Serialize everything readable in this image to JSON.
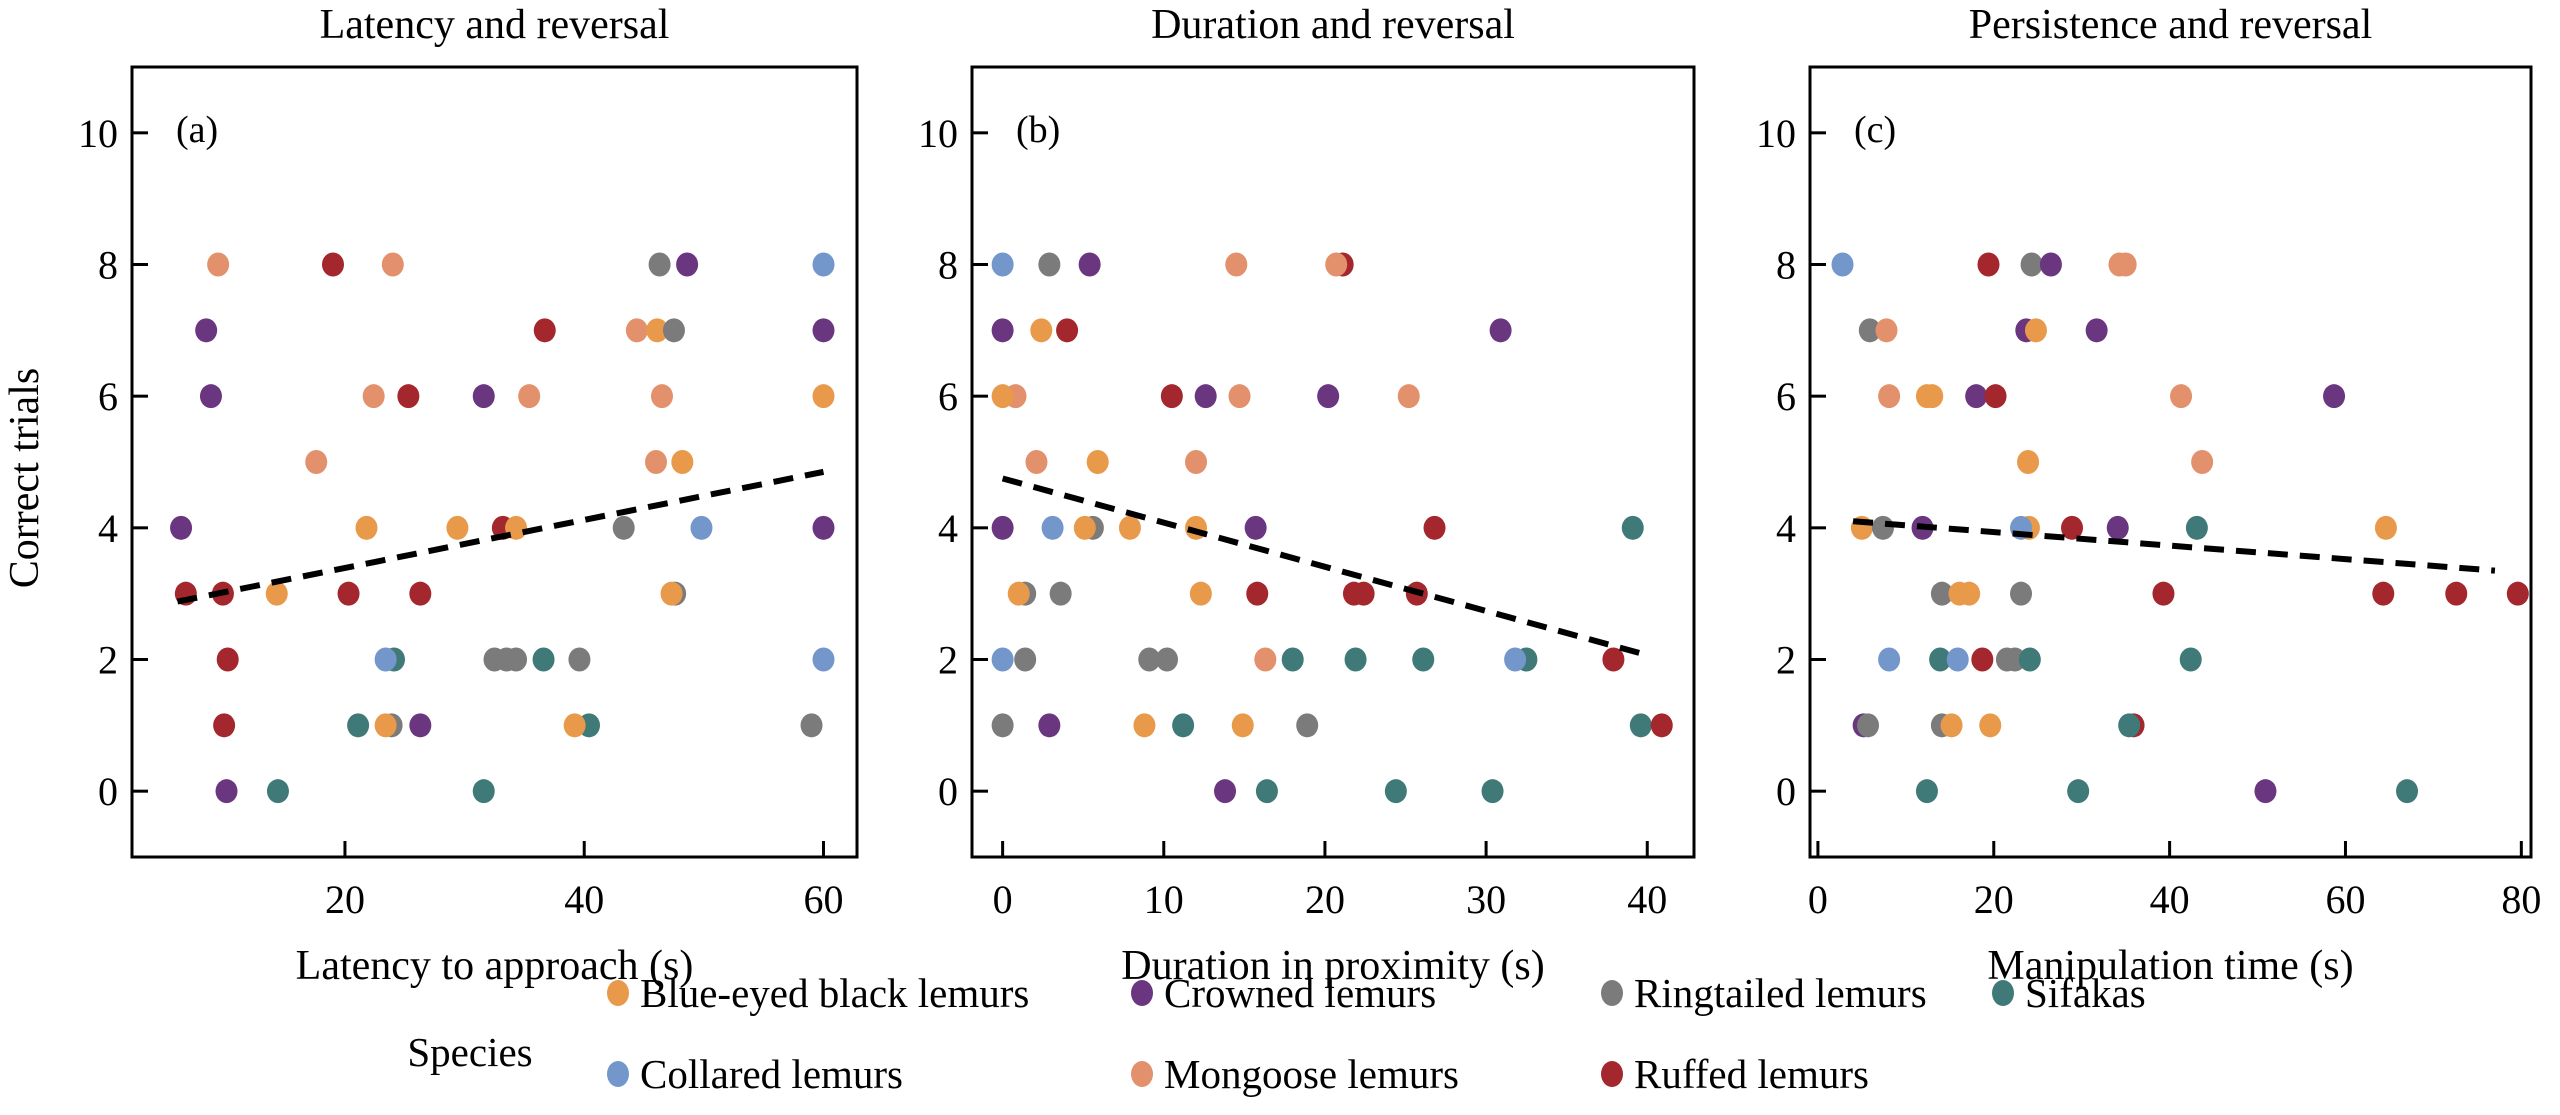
{
  "figure": {
    "y_axis_label": "Correct trials",
    "legend_title": "Species"
  },
  "species": [
    {
      "key": "blue_eyed",
      "name": "Blue-eyed black lemurs",
      "color": "#E8994A"
    },
    {
      "key": "crowned",
      "name": "Crowned lemurs",
      "color": "#6A3680"
    },
    {
      "key": "ringtailed",
      "name": "Ringtailed lemurs",
      "color": "#7B7B7B"
    },
    {
      "key": "sifakas",
      "name": "Sifakas",
      "color": "#3F7A78"
    },
    {
      "key": "collared",
      "name": "Collared lemurs",
      "color": "#7396CB"
    },
    {
      "key": "mongoose",
      "name": "Mongoose lemurs",
      "color": "#E3906C"
    },
    {
      "key": "ruffed",
      "name": "Ruffed lemurs",
      "color": "#A3272D"
    }
  ],
  "chart_data": [
    {
      "type": "scatter",
      "panel_tag": "(a)",
      "title": "Latency and reversal",
      "xlabel": "Latency to approach (s)",
      "ylabel": "Correct trials",
      "xlim": [
        2.2,
        62.8
      ],
      "ylim": [
        -1.0,
        11.0
      ],
      "xticks": [
        20,
        40,
        60
      ],
      "yticks": [
        0,
        2,
        4,
        6,
        8,
        10
      ],
      "trend": {
        "style": "dashed",
        "x": [
          6,
          60
        ],
        "y": [
          2.88,
          4.85
        ]
      },
      "points": [
        {
          "s": "mongoose",
          "x": 9.4,
          "y": 8
        },
        {
          "s": "ruffed",
          "x": 19.0,
          "y": 8
        },
        {
          "s": "mongoose",
          "x": 24.0,
          "y": 8
        },
        {
          "s": "ringtailed",
          "x": 46.3,
          "y": 8
        },
        {
          "s": "crowned",
          "x": 48.6,
          "y": 8
        },
        {
          "s": "collared",
          "x": 60.0,
          "y": 8
        },
        {
          "s": "crowned",
          "x": 8.4,
          "y": 7
        },
        {
          "s": "ruffed",
          "x": 36.7,
          "y": 7
        },
        {
          "s": "mongoose",
          "x": 44.4,
          "y": 7
        },
        {
          "s": "blue_eyed",
          "x": 46.1,
          "y": 7
        },
        {
          "s": "ringtailed",
          "x": 47.5,
          "y": 7
        },
        {
          "s": "crowned",
          "x": 60.0,
          "y": 7
        },
        {
          "s": "crowned",
          "x": 8.8,
          "y": 6
        },
        {
          "s": "mongoose",
          "x": 22.4,
          "y": 6
        },
        {
          "s": "ruffed",
          "x": 25.3,
          "y": 6
        },
        {
          "s": "crowned",
          "x": 31.6,
          "y": 6
        },
        {
          "s": "mongoose",
          "x": 35.4,
          "y": 6
        },
        {
          "s": "mongoose",
          "x": 46.5,
          "y": 6
        },
        {
          "s": "blue_eyed",
          "x": 60.0,
          "y": 6
        },
        {
          "s": "mongoose",
          "x": 17.6,
          "y": 5
        },
        {
          "s": "mongoose",
          "x": 46.0,
          "y": 5
        },
        {
          "s": "blue_eyed",
          "x": 48.2,
          "y": 5
        },
        {
          "s": "crowned",
          "x": 6.3,
          "y": 4
        },
        {
          "s": "blue_eyed",
          "x": 21.8,
          "y": 4
        },
        {
          "s": "blue_eyed",
          "x": 29.4,
          "y": 4
        },
        {
          "s": "ruffed",
          "x": 33.2,
          "y": 4
        },
        {
          "s": "blue_eyed",
          "x": 34.3,
          "y": 4
        },
        {
          "s": "ringtailed",
          "x": 43.3,
          "y": 4
        },
        {
          "s": "collared",
          "x": 49.8,
          "y": 4
        },
        {
          "s": "crowned",
          "x": 60.0,
          "y": 4
        },
        {
          "s": "ruffed",
          "x": 6.7,
          "y": 3
        },
        {
          "s": "ruffed",
          "x": 9.8,
          "y": 3
        },
        {
          "s": "blue_eyed",
          "x": 14.3,
          "y": 3
        },
        {
          "s": "ruffed",
          "x": 20.3,
          "y": 3
        },
        {
          "s": "ruffed",
          "x": 26.3,
          "y": 3
        },
        {
          "s": "ringtailed",
          "x": 47.6,
          "y": 3
        },
        {
          "s": "blue_eyed",
          "x": 47.3,
          "y": 3
        },
        {
          "s": "ruffed",
          "x": 10.2,
          "y": 2
        },
        {
          "s": "sifakas",
          "x": 24.1,
          "y": 2
        },
        {
          "s": "collared",
          "x": 23.4,
          "y": 2
        },
        {
          "s": "ringtailed",
          "x": 32.5,
          "y": 2
        },
        {
          "s": "ringtailed",
          "x": 33.5,
          "y": 2
        },
        {
          "s": "ringtailed",
          "x": 34.3,
          "y": 2
        },
        {
          "s": "sifakas",
          "x": 36.6,
          "y": 2
        },
        {
          "s": "ringtailed",
          "x": 39.6,
          "y": 2
        },
        {
          "s": "collared",
          "x": 60.0,
          "y": 2
        },
        {
          "s": "ruffed",
          "x": 9.9,
          "y": 1
        },
        {
          "s": "sifakas",
          "x": 21.1,
          "y": 1
        },
        {
          "s": "ringtailed",
          "x": 23.9,
          "y": 1
        },
        {
          "s": "blue_eyed",
          "x": 23.4,
          "y": 1
        },
        {
          "s": "crowned",
          "x": 26.3,
          "y": 1
        },
        {
          "s": "sifakas",
          "x": 40.4,
          "y": 1
        },
        {
          "s": "blue_eyed",
          "x": 39.2,
          "y": 1
        },
        {
          "s": "ringtailed",
          "x": 59.0,
          "y": 1
        },
        {
          "s": "crowned",
          "x": 10.1,
          "y": 0
        },
        {
          "s": "sifakas",
          "x": 14.4,
          "y": 0
        },
        {
          "s": "sifakas",
          "x": 31.6,
          "y": 0
        }
      ]
    },
    {
      "type": "scatter",
      "panel_tag": "(b)",
      "title": "Duration and reversal",
      "xlabel": "Duration in proximity (s)",
      "ylabel": "Correct trials",
      "xlim": [
        -1.9,
        42.9
      ],
      "ylim": [
        -1.0,
        11.0
      ],
      "xticks": [
        0,
        10,
        20,
        30,
        40
      ],
      "yticks": [
        0,
        2,
        4,
        6,
        8,
        10
      ],
      "trend": {
        "style": "dashed",
        "x": [
          0,
          39.5
        ],
        "y": [
          4.75,
          2.1
        ]
      },
      "points": [
        {
          "s": "collared",
          "x": 0.0,
          "y": 8
        },
        {
          "s": "ringtailed",
          "x": 2.9,
          "y": 8
        },
        {
          "s": "crowned",
          "x": 5.4,
          "y": 8
        },
        {
          "s": "mongoose",
          "x": 14.5,
          "y": 8
        },
        {
          "s": "ruffed",
          "x": 21.1,
          "y": 8
        },
        {
          "s": "mongoose",
          "x": 20.7,
          "y": 8
        },
        {
          "s": "crowned",
          "x": 0.0,
          "y": 7
        },
        {
          "s": "blue_eyed",
          "x": 2.4,
          "y": 7
        },
        {
          "s": "ruffed",
          "x": 4.0,
          "y": 7
        },
        {
          "s": "crowned",
          "x": 30.9,
          "y": 7
        },
        {
          "s": "mongoose",
          "x": 0.8,
          "y": 6
        },
        {
          "s": "blue_eyed",
          "x": 0.0,
          "y": 6
        },
        {
          "s": "ruffed",
          "x": 10.5,
          "y": 6
        },
        {
          "s": "crowned",
          "x": 12.6,
          "y": 6
        },
        {
          "s": "mongoose",
          "x": 14.7,
          "y": 6
        },
        {
          "s": "crowned",
          "x": 20.2,
          "y": 6
        },
        {
          "s": "mongoose",
          "x": 25.2,
          "y": 6
        },
        {
          "s": "mongoose",
          "x": 2.1,
          "y": 5
        },
        {
          "s": "blue_eyed",
          "x": 5.9,
          "y": 5
        },
        {
          "s": "mongoose",
          "x": 12.0,
          "y": 5
        },
        {
          "s": "crowned",
          "x": 0.0,
          "y": 4
        },
        {
          "s": "collared",
          "x": 3.1,
          "y": 4
        },
        {
          "s": "ringtailed",
          "x": 5.6,
          "y": 4
        },
        {
          "s": "blue_eyed",
          "x": 5.1,
          "y": 4
        },
        {
          "s": "blue_eyed",
          "x": 7.9,
          "y": 4
        },
        {
          "s": "blue_eyed",
          "x": 12.0,
          "y": 4
        },
        {
          "s": "crowned",
          "x": 15.7,
          "y": 4
        },
        {
          "s": "ruffed",
          "x": 26.8,
          "y": 4
        },
        {
          "s": "sifakas",
          "x": 39.1,
          "y": 4
        },
        {
          "s": "ringtailed",
          "x": 1.4,
          "y": 3
        },
        {
          "s": "blue_eyed",
          "x": 1.0,
          "y": 3
        },
        {
          "s": "ringtailed",
          "x": 3.6,
          "y": 3
        },
        {
          "s": "blue_eyed",
          "x": 12.3,
          "y": 3
        },
        {
          "s": "ruffed",
          "x": 15.8,
          "y": 3
        },
        {
          "s": "ruffed",
          "x": 21.8,
          "y": 3
        },
        {
          "s": "ruffed",
          "x": 22.4,
          "y": 3
        },
        {
          "s": "ruffed",
          "x": 25.7,
          "y": 3
        },
        {
          "s": "collared",
          "x": 0.0,
          "y": 2
        },
        {
          "s": "ringtailed",
          "x": 1.4,
          "y": 2
        },
        {
          "s": "ringtailed",
          "x": 9.1,
          "y": 2
        },
        {
          "s": "ringtailed",
          "x": 10.2,
          "y": 2
        },
        {
          "s": "mongoose",
          "x": 16.3,
          "y": 2
        },
        {
          "s": "sifakas",
          "x": 18.0,
          "y": 2
        },
        {
          "s": "sifakas",
          "x": 21.9,
          "y": 2
        },
        {
          "s": "sifakas",
          "x": 26.1,
          "y": 2
        },
        {
          "s": "sifakas",
          "x": 32.5,
          "y": 2
        },
        {
          "s": "collared",
          "x": 31.8,
          "y": 2
        },
        {
          "s": "ruffed",
          "x": 37.9,
          "y": 2
        },
        {
          "s": "ringtailed",
          "x": 0.0,
          "y": 1
        },
        {
          "s": "crowned",
          "x": 2.9,
          "y": 1
        },
        {
          "s": "blue_eyed",
          "x": 8.8,
          "y": 1
        },
        {
          "s": "sifakas",
          "x": 11.2,
          "y": 1
        },
        {
          "s": "blue_eyed",
          "x": 14.9,
          "y": 1
        },
        {
          "s": "ringtailed",
          "x": 18.9,
          "y": 1
        },
        {
          "s": "sifakas",
          "x": 39.6,
          "y": 1
        },
        {
          "s": "ruffed",
          "x": 40.9,
          "y": 1
        },
        {
          "s": "crowned",
          "x": 13.8,
          "y": 0
        },
        {
          "s": "sifakas",
          "x": 16.4,
          "y": 0
        },
        {
          "s": "sifakas",
          "x": 24.4,
          "y": 0
        },
        {
          "s": "sifakas",
          "x": 30.4,
          "y": 0
        }
      ]
    },
    {
      "type": "scatter",
      "panel_tag": "(c)",
      "title": "Persistence and reversal",
      "xlabel": "Manipulation time (s)",
      "ylabel": "Correct trials",
      "xlim": [
        -0.9,
        81.1
      ],
      "ylim": [
        -1.0,
        11.0
      ],
      "xticks": [
        0,
        20,
        40,
        60,
        80
      ],
      "yticks": [
        0,
        2,
        4,
        6,
        8,
        10
      ],
      "trend": {
        "style": "dashed",
        "x": [
          4,
          77
        ],
        "y": [
          4.1,
          3.35
        ]
      },
      "points": [
        {
          "s": "collared",
          "x": 2.8,
          "y": 8
        },
        {
          "s": "ruffed",
          "x": 19.4,
          "y": 8
        },
        {
          "s": "ringtailed",
          "x": 24.3,
          "y": 8
        },
        {
          "s": "crowned",
          "x": 26.5,
          "y": 8
        },
        {
          "s": "mongoose",
          "x": 34.3,
          "y": 8
        },
        {
          "s": "mongoose",
          "x": 35.0,
          "y": 8
        },
        {
          "s": "ringtailed",
          "x": 5.9,
          "y": 7
        },
        {
          "s": "mongoose",
          "x": 7.8,
          "y": 7
        },
        {
          "s": "crowned",
          "x": 23.7,
          "y": 7
        },
        {
          "s": "blue_eyed",
          "x": 24.8,
          "y": 7
        },
        {
          "s": "crowned",
          "x": 31.7,
          "y": 7
        },
        {
          "s": "mongoose",
          "x": 8.1,
          "y": 6
        },
        {
          "s": "blue_eyed",
          "x": 12.4,
          "y": 6
        },
        {
          "s": "blue_eyed",
          "x": 13.0,
          "y": 6
        },
        {
          "s": "crowned",
          "x": 18.0,
          "y": 6
        },
        {
          "s": "ruffed",
          "x": 20.2,
          "y": 6
        },
        {
          "s": "mongoose",
          "x": 41.3,
          "y": 6
        },
        {
          "s": "crowned",
          "x": 58.7,
          "y": 6
        },
        {
          "s": "blue_eyed",
          "x": 23.9,
          "y": 5
        },
        {
          "s": "mongoose",
          "x": 43.7,
          "y": 5
        },
        {
          "s": "blue_eyed",
          "x": 5.0,
          "y": 4
        },
        {
          "s": "ringtailed",
          "x": 7.4,
          "y": 4
        },
        {
          "s": "crowned",
          "x": 11.9,
          "y": 4
        },
        {
          "s": "blue_eyed",
          "x": 24.0,
          "y": 4
        },
        {
          "s": "collared",
          "x": 23.1,
          "y": 4
        },
        {
          "s": "ruffed",
          "x": 28.9,
          "y": 4
        },
        {
          "s": "crowned",
          "x": 34.1,
          "y": 4
        },
        {
          "s": "sifakas",
          "x": 43.1,
          "y": 4
        },
        {
          "s": "blue_eyed",
          "x": 64.6,
          "y": 4
        },
        {
          "s": "ringtailed",
          "x": 14.1,
          "y": 3
        },
        {
          "s": "blue_eyed",
          "x": 16.1,
          "y": 3
        },
        {
          "s": "blue_eyed",
          "x": 17.2,
          "y": 3
        },
        {
          "s": "ringtailed",
          "x": 23.1,
          "y": 3
        },
        {
          "s": "ruffed",
          "x": 39.3,
          "y": 3
        },
        {
          "s": "ruffed",
          "x": 64.3,
          "y": 3
        },
        {
          "s": "ruffed",
          "x": 72.6,
          "y": 3
        },
        {
          "s": "ruffed",
          "x": 79.6,
          "y": 3
        },
        {
          "s": "collared",
          "x": 8.1,
          "y": 2
        },
        {
          "s": "sifakas",
          "x": 13.9,
          "y": 2
        },
        {
          "s": "collared",
          "x": 15.9,
          "y": 2
        },
        {
          "s": "ruffed",
          "x": 18.7,
          "y": 2
        },
        {
          "s": "ringtailed",
          "x": 21.5,
          "y": 2
        },
        {
          "s": "ringtailed",
          "x": 22.4,
          "y": 2
        },
        {
          "s": "sifakas",
          "x": 24.1,
          "y": 2
        },
        {
          "s": "sifakas",
          "x": 42.4,
          "y": 2
        },
        {
          "s": "crowned",
          "x": 5.2,
          "y": 1
        },
        {
          "s": "ringtailed",
          "x": 5.7,
          "y": 1
        },
        {
          "s": "ringtailed",
          "x": 14.1,
          "y": 1
        },
        {
          "s": "blue_eyed",
          "x": 15.2,
          "y": 1
        },
        {
          "s": "blue_eyed",
          "x": 19.6,
          "y": 1
        },
        {
          "s": "ruffed",
          "x": 35.9,
          "y": 1
        },
        {
          "s": "sifakas",
          "x": 35.4,
          "y": 1
        },
        {
          "s": "sifakas",
          "x": 12.4,
          "y": 0
        },
        {
          "s": "sifakas",
          "x": 29.6,
          "y": 0
        },
        {
          "s": "crowned",
          "x": 50.9,
          "y": 0
        },
        {
          "s": "sifakas",
          "x": 67.0,
          "y": 0
        }
      ]
    }
  ]
}
